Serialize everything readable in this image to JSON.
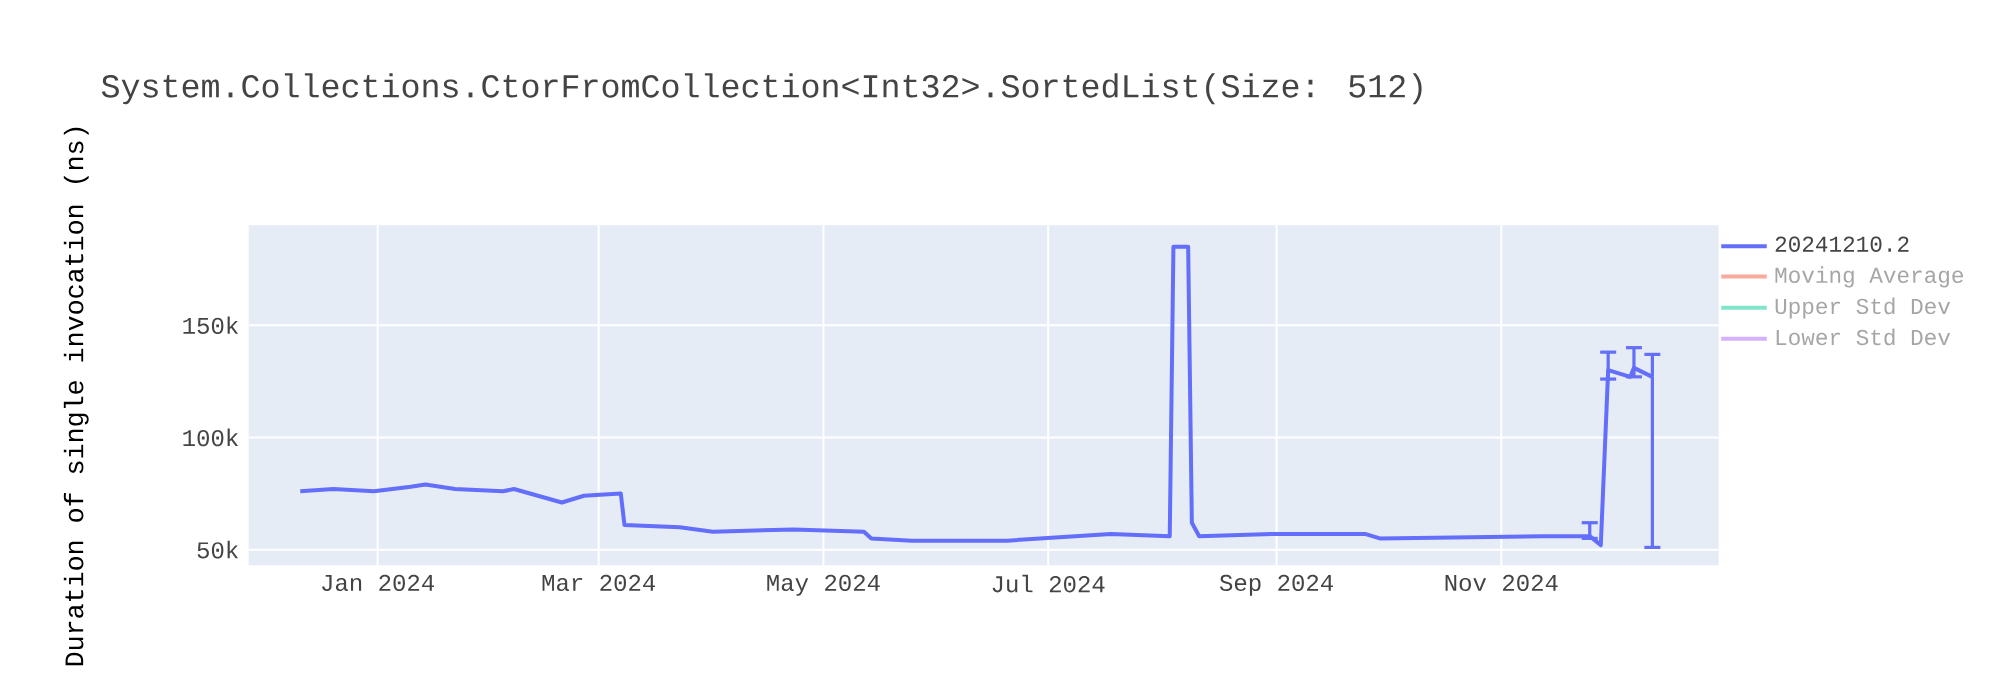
{
  "chart_data": {
    "type": "line",
    "title": "System.Collections.CtorFromCollection<Int32>.SortedList(Size: 512)",
    "ylabel": "Duration of single invocation (ns)",
    "x": [
      "2023-12-11",
      "2023-12-20",
      "2023-12-31",
      "2024-01-10",
      "2024-01-14",
      "2024-01-22",
      "2024-02-04",
      "2024-02-07",
      "2024-02-20",
      "2024-02-26",
      "2024-03-07",
      "2024-03-08",
      "2024-03-23",
      "2024-04-01",
      "2024-04-23",
      "2024-05-12",
      "2024-05-14",
      "2024-05-25",
      "2024-06-20",
      "2024-07-18",
      "2024-08-03",
      "2024-08-04",
      "2024-08-08",
      "2024-08-09",
      "2024-08-11",
      "2024-08-31",
      "2024-09-25",
      "2024-09-29",
      "2024-11-12",
      "2024-11-25",
      "2024-11-28",
      "2024-11-30",
      "2024-12-06",
      "2024-12-07",
      "2024-12-12"
    ],
    "series": [
      {
        "name": "20241210.2",
        "color": "#636efa",
        "values": [
          76000,
          77000,
          76000,
          78000,
          79000,
          77000,
          76000,
          77000,
          71000,
          74000,
          75000,
          61000,
          60000,
          58000,
          59000,
          58000,
          55000,
          54000,
          54000,
          57000,
          56000,
          185000,
          185000,
          62000,
          56000,
          57000,
          57000,
          55000,
          56000,
          56000,
          52000,
          130000,
          127000,
          131000,
          127000
        ],
        "errors": [
          null,
          null,
          null,
          null,
          null,
          null,
          null,
          null,
          null,
          null,
          null,
          null,
          null,
          null,
          null,
          null,
          null,
          null,
          null,
          null,
          null,
          null,
          null,
          null,
          null,
          null,
          null,
          null,
          null,
          [
            55000,
            62000
          ],
          null,
          [
            126000,
            138000
          ],
          null,
          [
            127000,
            140000
          ],
          [
            51000,
            137000
          ]
        ]
      },
      {
        "name": "Moving Average",
        "color": "#f7aa9d",
        "values": [
          null,
          null,
          null,
          null,
          null,
          null,
          null,
          null,
          null,
          null,
          null,
          null,
          null,
          null,
          null,
          null,
          null,
          null,
          null,
          null,
          null,
          null,
          null,
          null,
          null,
          null,
          null,
          null,
          null,
          null,
          null,
          null,
          null,
          null,
          null
        ]
      },
      {
        "name": "Upper Std Dev",
        "color": "#80e5cb",
        "values": [
          null,
          null,
          null,
          null,
          null,
          null,
          null,
          null,
          null,
          null,
          null,
          null,
          null,
          null,
          null,
          null,
          null,
          null,
          null,
          null,
          null,
          null,
          null,
          null,
          null,
          null,
          null,
          null,
          null,
          null,
          null,
          null,
          null,
          null,
          null
        ]
      },
      {
        "name": "Lower Std Dev",
        "color": "#d5b1fd",
        "values": [
          null,
          null,
          null,
          null,
          null,
          null,
          null,
          null,
          null,
          null,
          null,
          null,
          null,
          null,
          null,
          null,
          null,
          null,
          null,
          null,
          null,
          null,
          null,
          null,
          null,
          null,
          null,
          null,
          null,
          null,
          null,
          null,
          null,
          null,
          null
        ]
      }
    ],
    "xlim": [
      "2023-11-27",
      "2024-12-30"
    ],
    "xticks": [
      {
        "value": "2024-01-01",
        "label": "Jan 2024"
      },
      {
        "value": "2024-03-01",
        "label": "Mar 2024"
      },
      {
        "value": "2024-05-01",
        "label": "May 2024"
      },
      {
        "value": "2024-07-01",
        "label": "Jul 2024"
      },
      {
        "value": "2024-09-01",
        "label": "Sep 2024"
      },
      {
        "value": "2024-11-01",
        "label": "Nov 2024"
      }
    ],
    "ylim": [
      43000,
      194500
    ],
    "yticks": [
      {
        "value": 50000,
        "label": "50k"
      },
      {
        "value": 100000,
        "label": "100k"
      },
      {
        "value": 150000,
        "label": "150k"
      }
    ],
    "grid": true,
    "legend": "top right",
    "marker": "none",
    "line_style": "solid"
  }
}
